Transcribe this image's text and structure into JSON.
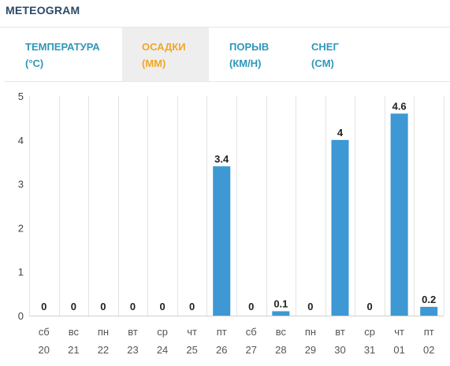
{
  "title": "METEOGRAM",
  "tabs": [
    {
      "line1": "ТЕМПЕРАТУРА",
      "line2": "(°C)"
    },
    {
      "line1": "ОСАДКИ",
      "line2": "(MM)"
    },
    {
      "line1": "ПОРЫВ",
      "line2": "(КМ/Н)"
    },
    {
      "line1": "СНЕГ",
      "line2": "(CM)"
    }
  ],
  "active_tab": 1,
  "colors": {
    "accent_active": "#f0a726",
    "tab_text": "#2f97b9",
    "bar": "#3d98d3",
    "title": "#2a4a66"
  },
  "chart_data": {
    "type": "bar",
    "categories": [
      "сб",
      "вс",
      "пн",
      "вт",
      "ср",
      "чт",
      "пт",
      "сб",
      "вс",
      "пн",
      "вт",
      "ср",
      "чт",
      "пт"
    ],
    "dates": [
      "20",
      "21",
      "22",
      "23",
      "24",
      "25",
      "26",
      "27",
      "28",
      "29",
      "30",
      "31",
      "01",
      "02"
    ],
    "values": [
      0,
      0,
      0,
      0,
      0,
      0,
      3.4,
      0,
      0.1,
      0,
      4,
      0,
      4.6,
      0.2
    ],
    "value_labels": [
      "0",
      "0",
      "0",
      "0",
      "0",
      "0",
      "3.4",
      "0",
      "0.1",
      "0",
      "4",
      "0",
      "4.6",
      "0.2"
    ],
    "yticks": [
      "0",
      "1",
      "2",
      "3",
      "4",
      "5"
    ],
    "ylim": [
      0,
      5
    ],
    "grid": true
  }
}
